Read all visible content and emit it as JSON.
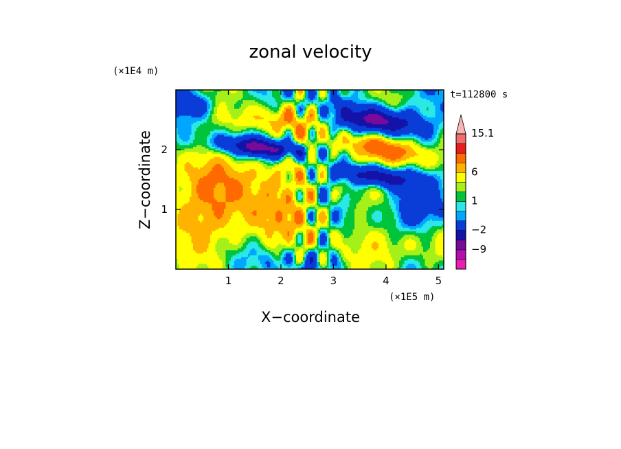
{
  "chart_data": {
    "type": "heatmap",
    "title": "zonal velocity",
    "xlabel": "X−coordinate",
    "ylabel": "Z−coordinate",
    "x_units": "(×1E5 m)",
    "y_units": "(×1E4 m)",
    "time_label": "t=112800 s",
    "x_ticks": [
      "1",
      "2",
      "3",
      "4",
      "5"
    ],
    "x_tick_values": [
      1,
      2,
      3,
      4,
      5
    ],
    "y_ticks": [
      "1",
      "2"
    ],
    "y_tick_values": [
      1,
      2
    ],
    "xlim": [
      0,
      5.1
    ],
    "ylim": [
      0,
      3
    ],
    "colorbar": {
      "levels": [
        -15.1,
        -12,
        -9,
        -6,
        -2,
        -1,
        0,
        1,
        2,
        4,
        6,
        9,
        12,
        15.1
      ],
      "labels": [
        "15.1",
        "6",
        "1",
        "−2",
        "−9"
      ],
      "label_values": [
        15.1,
        6,
        1,
        -2,
        -9
      ],
      "colors": [
        "#e81fb0",
        "#b50db0",
        "#7a0a9a",
        "#1512a8",
        "#0a3cd8",
        "#00a6ff",
        "#2be8e6",
        "#00c43a",
        "#a6f01a",
        "#ffff00",
        "#ffb300",
        "#ff6a00",
        "#ee1d1d",
        "#f06d6d",
        "#f9b5b5"
      ]
    },
    "grid": false
  }
}
